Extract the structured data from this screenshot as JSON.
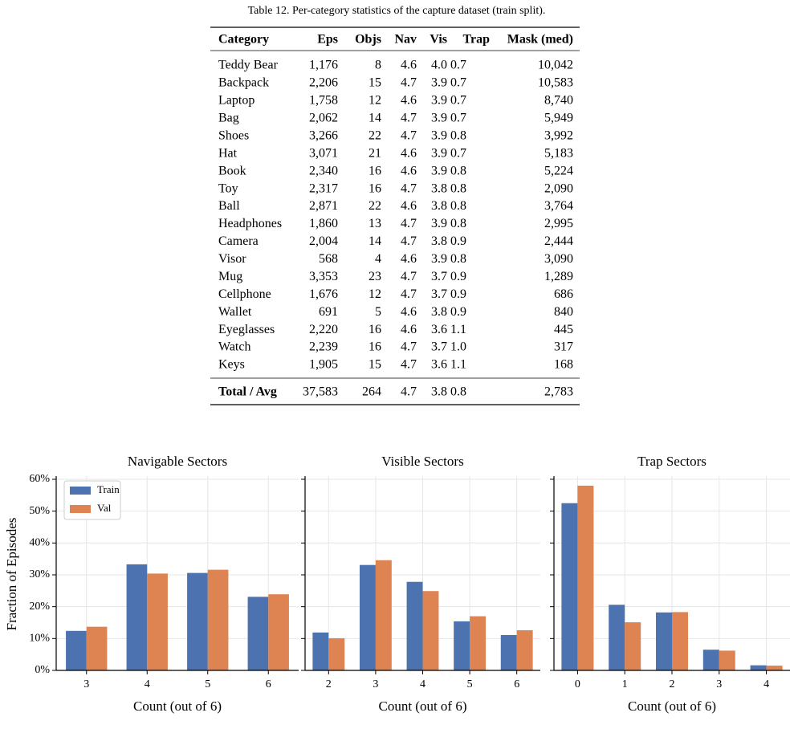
{
  "table": {
    "caption": "Table 12. Per-category statistics of the capture dataset (train split).",
    "header": [
      "Category",
      "Eps",
      "Objs",
      "Nav",
      "Vis",
      "Trap",
      "Mask (med)"
    ],
    "rows": [
      [
        "Teddy Bear",
        "1,176",
        "8",
        "4.6",
        "4.0",
        "0.7",
        "10,042"
      ],
      [
        "Backpack",
        "2,206",
        "15",
        "4.7",
        "3.9",
        "0.7",
        "10,583"
      ],
      [
        "Laptop",
        "1,758",
        "12",
        "4.6",
        "3.9",
        "0.7",
        "8,740"
      ],
      [
        "Bag",
        "2,062",
        "14",
        "4.7",
        "3.9",
        "0.7",
        "5,949"
      ],
      [
        "Shoes",
        "3,266",
        "22",
        "4.7",
        "3.9",
        "0.8",
        "3,992"
      ],
      [
        "Hat",
        "3,071",
        "21",
        "4.6",
        "3.9",
        "0.7",
        "5,183"
      ],
      [
        "Book",
        "2,340",
        "16",
        "4.6",
        "3.9",
        "0.8",
        "5,224"
      ],
      [
        "Toy",
        "2,317",
        "16",
        "4.7",
        "3.8",
        "0.8",
        "2,090"
      ],
      [
        "Ball",
        "2,871",
        "22",
        "4.6",
        "3.8",
        "0.8",
        "3,764"
      ],
      [
        "Headphones",
        "1,860",
        "13",
        "4.7",
        "3.9",
        "0.8",
        "2,995"
      ],
      [
        "Camera",
        "2,004",
        "14",
        "4.7",
        "3.8",
        "0.9",
        "2,444"
      ],
      [
        "Visor",
        "568",
        "4",
        "4.6",
        "3.9",
        "0.8",
        "3,090"
      ],
      [
        "Mug",
        "3,353",
        "23",
        "4.7",
        "3.7",
        "0.9",
        "1,289"
      ],
      [
        "Cellphone",
        "1,676",
        "12",
        "4.7",
        "3.7",
        "0.9",
        "686"
      ],
      [
        "Wallet",
        "691",
        "5",
        "4.6",
        "3.8",
        "0.9",
        "840"
      ],
      [
        "Eyeglasses",
        "2,220",
        "16",
        "4.6",
        "3.6",
        "1.1",
        "445"
      ],
      [
        "Watch",
        "2,239",
        "16",
        "4.7",
        "3.7",
        "1.0",
        "317"
      ],
      [
        "Keys",
        "1,905",
        "15",
        "4.7",
        "3.6",
        "1.1",
        "168"
      ]
    ],
    "total": [
      "Total / Avg",
      "37,583",
      "264",
      "4.7",
      "3.8",
      "0.8",
      "2,783"
    ]
  },
  "chart_data": [
    {
      "type": "bar",
      "title": "Navigable Sectors",
      "x_label": "Count (out of 6)",
      "y_label": "Fraction of Episodes",
      "categories": [
        "3",
        "4",
        "5",
        "6"
      ],
      "series": [
        {
          "name": "Train",
          "color": "#4c72b0",
          "values": [
            12.4,
            33.3,
            30.6,
            23.1
          ]
        },
        {
          "name": "Val",
          "color": "#dd8452",
          "values": [
            13.7,
            30.4,
            31.6,
            23.9
          ]
        }
      ],
      "ylim": [
        0,
        61
      ],
      "yticks": [
        {
          "value": 0,
          "label": "0%"
        },
        {
          "value": 10,
          "label": "10%"
        },
        {
          "value": 20,
          "label": "20%"
        },
        {
          "value": 30,
          "label": "30%"
        },
        {
          "value": 40,
          "label": "40%"
        },
        {
          "value": 50,
          "label": "50%"
        },
        {
          "value": 60,
          "label": "60%"
        }
      ],
      "grid": true,
      "legend": "upper left"
    },
    {
      "type": "bar",
      "title": "Visible Sectors",
      "x_label": "Count (out of 6)",
      "categories": [
        "2",
        "3",
        "4",
        "5",
        "6"
      ],
      "series": [
        {
          "color": "#4c72b0",
          "values": [
            11.9,
            33.1,
            27.8,
            15.4,
            11.1
          ]
        },
        {
          "color": "#dd8452",
          "values": [
            10.1,
            34.6,
            24.9,
            17.0,
            12.6
          ]
        }
      ],
      "ylim": [
        0,
        61
      ],
      "yticks": [
        0,
        10,
        20,
        30,
        40,
        50,
        60
      ],
      "grid": true
    },
    {
      "type": "bar",
      "title": "Trap Sectors",
      "x_label": "Count (out of 6)",
      "categories": [
        "0",
        "1",
        "2",
        "3",
        "4"
      ],
      "series": [
        {
          "color": "#4c72b0",
          "values": [
            52.5,
            20.6,
            18.2,
            6.5,
            1.6
          ]
        },
        {
          "color": "#dd8452",
          "values": [
            58.0,
            15.1,
            18.3,
            6.2,
            1.5
          ]
        }
      ],
      "ylim": [
        0,
        61
      ],
      "yticks": [
        0,
        10,
        20,
        30,
        40,
        50,
        60
      ],
      "grid": true
    }
  ]
}
